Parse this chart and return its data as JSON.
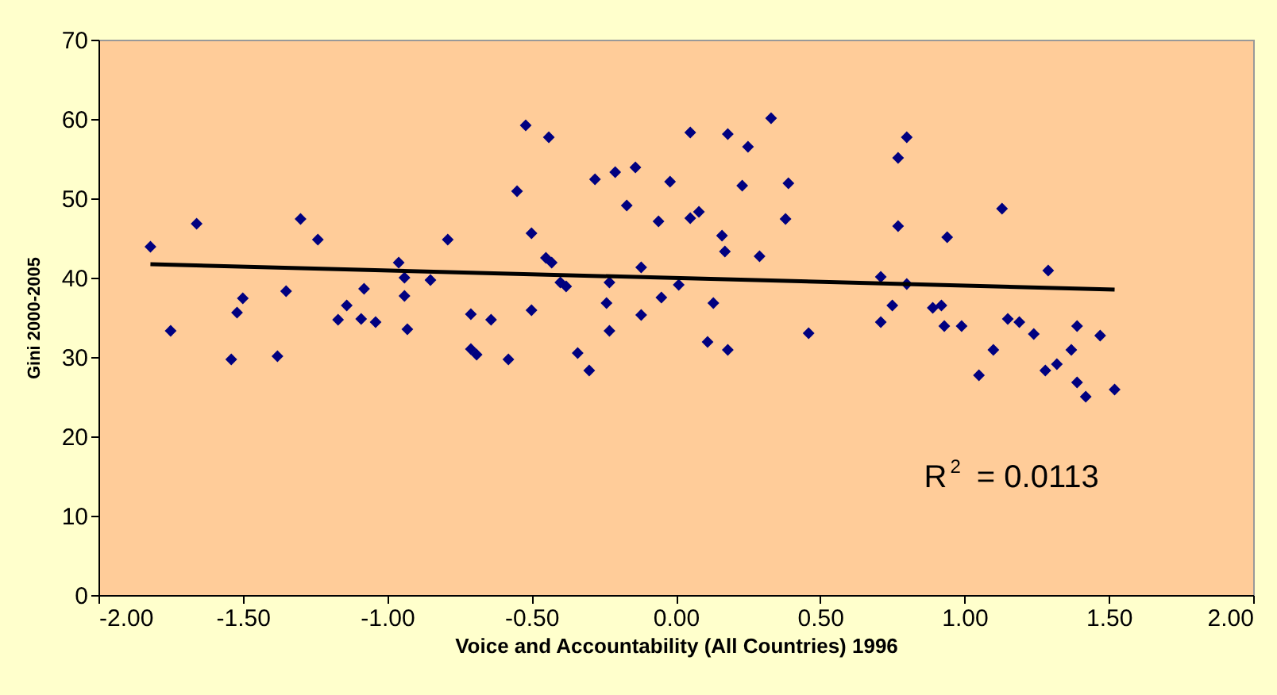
{
  "chart_data": {
    "type": "scatter",
    "xlabel": "Voice and Accountability (All Countries) 1996",
    "ylabel": "Gini 2000-2005",
    "xlim": [
      -2,
      2
    ],
    "xticks": [
      {
        "value": -2,
        "label": "-2.00"
      },
      {
        "value": -1.5,
        "label": "-1.50"
      },
      {
        "value": -1,
        "label": "-1.00"
      },
      {
        "value": -0.5,
        "label": "-0.50"
      },
      {
        "value": 0,
        "label": "0.00"
      },
      {
        "value": 0.5,
        "label": "0.50"
      },
      {
        "value": 1,
        "label": "1.00"
      },
      {
        "value": 1.5,
        "label": "1.50"
      },
      {
        "value": 2,
        "label": "2.00"
      }
    ],
    "ylim": [
      0,
      70
    ],
    "yticks": [
      0,
      10,
      20,
      30,
      40,
      50,
      60,
      70
    ],
    "marker": "diamond",
    "grid": false,
    "annotations": [
      "R$^{2}$ = 0.0113"
    ],
    "series": [
      {
        "color": "#000080",
        "x": [
          -1.82,
          -1.75,
          -1.66,
          -1.54,
          -1.52,
          -1.5,
          -1.38,
          -1.35,
          -1.3,
          -1.24,
          -1.17,
          -1.14,
          -1.09,
          -1.08,
          -1.04,
          -0.96,
          -0.94,
          -0.94,
          -0.93,
          -0.85,
          -0.79,
          -0.71,
          -0.71,
          -0.52,
          -0.44,
          -0.55,
          -0.5,
          -0.45,
          -0.43,
          -0.4,
          -0.38,
          -0.5,
          -0.64,
          -0.69,
          -0.58,
          -0.34,
          -0.3,
          -0.28,
          -0.21,
          -0.14,
          -0.17,
          -0.02,
          -0.06,
          -0.23,
          -0.24,
          -0.23,
          -0.12,
          -0.12,
          -0.05,
          0.01,
          0.05,
          0.18,
          0.25,
          0.33,
          0.05,
          0.08,
          0.23,
          0.39,
          0.38,
          0.16,
          0.17,
          0.29,
          0.13,
          0.11,
          0.18,
          0.46,
          0.8,
          0.77,
          1.13,
          0.77,
          0.94,
          1.29,
          0.71,
          0.8,
          0.75,
          0.71,
          0.89,
          0.92,
          0.93,
          0.99,
          1.15,
          1.19,
          1.24,
          1.1,
          1.05,
          1.39,
          1.37,
          1.47,
          1.28,
          1.32,
          1.39,
          1.42,
          1.52
        ],
        "values": [
          43.9,
          33.3,
          46.8,
          29.7,
          35.6,
          37.4,
          30.1,
          38.3,
          47.4,
          44.8,
          34.7,
          36.5,
          34.8,
          38.6,
          34.4,
          41.9,
          40.0,
          37.7,
          33.5,
          39.7,
          44.8,
          35.4,
          31.0,
          59.2,
          57.7,
          50.9,
          45.6,
          42.5,
          41.9,
          39.4,
          38.9,
          35.9,
          34.7,
          30.3,
          29.7,
          30.5,
          28.3,
          52.4,
          53.3,
          53.9,
          49.1,
          52.1,
          47.1,
          39.4,
          36.8,
          33.3,
          41.3,
          35.3,
          37.5,
          39.1,
          58.3,
          58.1,
          56.5,
          60.1,
          47.5,
          48.3,
          51.6,
          51.9,
          47.4,
          45.3,
          43.3,
          42.7,
          36.8,
          31.9,
          30.9,
          33.0,
          57.7,
          55.1,
          48.7,
          46.5,
          45.1,
          40.9,
          40.1,
          39.2,
          36.5,
          34.4,
          36.2,
          36.5,
          33.9,
          33.9,
          34.8,
          34.4,
          32.9,
          30.9,
          27.7,
          33.9,
          30.9,
          32.7,
          28.3,
          29.1,
          26.8,
          25.0,
          25.9
        ]
      },
      {
        "type": "line",
        "color": "#000000",
        "marker": "none",
        "x": [
          -1.82,
          1.52
        ],
        "values": [
          41.7,
          38.5
        ]
      }
    ]
  }
}
